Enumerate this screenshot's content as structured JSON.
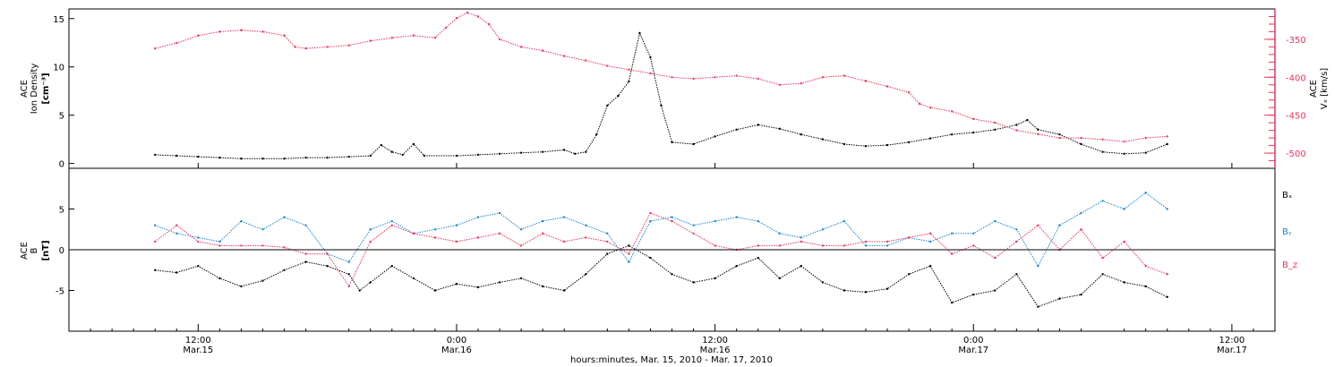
{
  "chart_data": [
    {
      "type": "scatter",
      "panel": "top",
      "left_axis": {
        "label_lines": [
          "ACE",
          "Ion Density",
          "[cm⁻³]"
        ],
        "range": [
          -0.5,
          16
        ],
        "ticks": [
          0,
          5,
          10,
          15
        ],
        "color": "#000000"
      },
      "right_axis": {
        "label_lines": [
          "ACE",
          "Vₓ [km/s]"
        ],
        "range": [
          -520,
          -310
        ],
        "ticks": [
          -350,
          -400,
          -450,
          -500
        ],
        "color": "#e8365d"
      },
      "series": [
        {
          "axis": "left",
          "color": "#000000",
          "points": [
            [
              0,
              0.9
            ],
            [
              2,
              0.8
            ],
            [
              4,
              0.7
            ],
            [
              6,
              0.6
            ],
            [
              8,
              0.5
            ],
            [
              10,
              0.5
            ],
            [
              12,
              0.5
            ],
            [
              14,
              0.6
            ],
            [
              16,
              0.6
            ],
            [
              18,
              0.7
            ],
            [
              20,
              0.8
            ],
            [
              21,
              1.9
            ],
            [
              22,
              1.2
            ],
            [
              23,
              0.9
            ],
            [
              24,
              2.0
            ],
            [
              25,
              0.8
            ],
            [
              28,
              0.8
            ],
            [
              30,
              0.9
            ],
            [
              32,
              1.0
            ],
            [
              34,
              1.1
            ],
            [
              36,
              1.2
            ],
            [
              38,
              1.4
            ],
            [
              39,
              1.0
            ],
            [
              40,
              1.2
            ],
            [
              41,
              3.0
            ],
            [
              42,
              6.0
            ],
            [
              43,
              7.0
            ],
            [
              44,
              8.5
            ],
            [
              45,
              13.5
            ],
            [
              46,
              11.0
            ],
            [
              47,
              6.0
            ],
            [
              48,
              2.2
            ],
            [
              50,
              2.0
            ],
            [
              52,
              2.8
            ],
            [
              54,
              3.5
            ],
            [
              56,
              4.0
            ],
            [
              58,
              3.6
            ],
            [
              60,
              3.0
            ],
            [
              62,
              2.5
            ],
            [
              64,
              2.0
            ],
            [
              66,
              1.8
            ],
            [
              68,
              1.9
            ],
            [
              70,
              2.2
            ],
            [
              72,
              2.6
            ],
            [
              74,
              3.0
            ],
            [
              76,
              3.2
            ],
            [
              78,
              3.5
            ],
            [
              80,
              4.0
            ],
            [
              81,
              4.5
            ],
            [
              82,
              3.5
            ],
            [
              84,
              3.0
            ],
            [
              86,
              2.0
            ],
            [
              88,
              1.2
            ],
            [
              90,
              1.0
            ],
            [
              92,
              1.1
            ],
            [
              94,
              2.0
            ]
          ]
        },
        {
          "axis": "right",
          "color": "#e8365d",
          "points": [
            [
              0,
              -362
            ],
            [
              2,
              -355
            ],
            [
              4,
              -345
            ],
            [
              6,
              -340
            ],
            [
              8,
              -338
            ],
            [
              10,
              -340
            ],
            [
              12,
              -345
            ],
            [
              13,
              -360
            ],
            [
              14,
              -362
            ],
            [
              16,
              -360
            ],
            [
              18,
              -358
            ],
            [
              20,
              -352
            ],
            [
              22,
              -348
            ],
            [
              24,
              -345
            ],
            [
              26,
              -348
            ],
            [
              27,
              -335
            ],
            [
              28,
              -322
            ],
            [
              29,
              -315
            ],
            [
              30,
              -320
            ],
            [
              31,
              -330
            ],
            [
              32,
              -350
            ],
            [
              34,
              -360
            ],
            [
              36,
              -365
            ],
            [
              38,
              -372
            ],
            [
              40,
              -378
            ],
            [
              42,
              -385
            ],
            [
              44,
              -390
            ],
            [
              46,
              -395
            ],
            [
              48,
              -400
            ],
            [
              50,
              -402
            ],
            [
              52,
              -400
            ],
            [
              54,
              -398
            ],
            [
              56,
              -402
            ],
            [
              58,
              -410
            ],
            [
              60,
              -408
            ],
            [
              62,
              -400
            ],
            [
              64,
              -398
            ],
            [
              66,
              -405
            ],
            [
              68,
              -412
            ],
            [
              70,
              -420
            ],
            [
              71,
              -435
            ],
            [
              72,
              -440
            ],
            [
              74,
              -445
            ],
            [
              76,
              -455
            ],
            [
              78,
              -460
            ],
            [
              80,
              -470
            ],
            [
              82,
              -475
            ],
            [
              84,
              -480
            ],
            [
              86,
              -480
            ],
            [
              88,
              -482
            ],
            [
              90,
              -485
            ],
            [
              92,
              -480
            ],
            [
              94,
              -478
            ]
          ]
        }
      ]
    },
    {
      "type": "scatter",
      "panel": "bottom",
      "left_axis": {
        "label_lines": [
          "ACE",
          "B",
          "[nT]"
        ],
        "range": [
          -10,
          10
        ],
        "ticks": [
          5,
          0,
          -5
        ],
        "zero_line": true
      },
      "legend": [
        {
          "text": "Bₓ",
          "color": "#000000"
        },
        {
          "text": "Bᵧ",
          "color": "#1a87d8"
        },
        {
          "text": "B_z",
          "color": "#e8365d"
        }
      ],
      "series": [
        {
          "name": "Bₓ",
          "color": "#000000",
          "points": [
            [
              0,
              -2.5
            ],
            [
              2,
              -2.8
            ],
            [
              4,
              -2.0
            ],
            [
              6,
              -3.5
            ],
            [
              8,
              -4.5
            ],
            [
              10,
              -3.8
            ],
            [
              12,
              -2.5
            ],
            [
              14,
              -1.5
            ],
            [
              16,
              -2.0
            ],
            [
              18,
              -3.0
            ],
            [
              19,
              -5.0
            ],
            [
              20,
              -4.0
            ],
            [
              22,
              -2.0
            ],
            [
              24,
              -3.5
            ],
            [
              26,
              -5.0
            ],
            [
              28,
              -4.2
            ],
            [
              30,
              -4.6
            ],
            [
              32,
              -4.0
            ],
            [
              34,
              -3.5
            ],
            [
              36,
              -4.5
            ],
            [
              38,
              -5.0
            ],
            [
              40,
              -3.0
            ],
            [
              42,
              -0.5
            ],
            [
              44,
              0.5
            ],
            [
              46,
              -1.0
            ],
            [
              48,
              -3.0
            ],
            [
              50,
              -4.0
            ],
            [
              52,
              -3.5
            ],
            [
              54,
              -2.0
            ],
            [
              56,
              -1.0
            ],
            [
              58,
              -3.5
            ],
            [
              60,
              -2.0
            ],
            [
              62,
              -4.0
            ],
            [
              64,
              -5.0
            ],
            [
              66,
              -5.2
            ],
            [
              68,
              -4.8
            ],
            [
              70,
              -3.0
            ],
            [
              72,
              -2.0
            ],
            [
              74,
              -6.5
            ],
            [
              76,
              -5.5
            ],
            [
              78,
              -5.0
            ],
            [
              80,
              -3.0
            ],
            [
              82,
              -7.0
            ],
            [
              84,
              -6.0
            ],
            [
              86,
              -5.5
            ],
            [
              88,
              -3.0
            ],
            [
              90,
              -4.0
            ],
            [
              92,
              -4.5
            ],
            [
              94,
              -5.8
            ]
          ]
        },
        {
          "name": "Bᵧ",
          "color": "#1a87d8",
          "points": [
            [
              0,
              3.0
            ],
            [
              2,
              2.0
            ],
            [
              4,
              1.5
            ],
            [
              6,
              1.0
            ],
            [
              8,
              3.5
            ],
            [
              10,
              2.5
            ],
            [
              12,
              4.0
            ],
            [
              14,
              3.0
            ],
            [
              16,
              -0.5
            ],
            [
              18,
              -1.5
            ],
            [
              20,
              2.5
            ],
            [
              22,
              3.5
            ],
            [
              24,
              2.0
            ],
            [
              26,
              2.5
            ],
            [
              28,
              3.0
            ],
            [
              30,
              4.0
            ],
            [
              32,
              4.5
            ],
            [
              34,
              2.5
            ],
            [
              36,
              3.5
            ],
            [
              38,
              4.0
            ],
            [
              40,
              3.0
            ],
            [
              42,
              2.0
            ],
            [
              44,
              -1.5
            ],
            [
              46,
              3.5
            ],
            [
              48,
              4.0
            ],
            [
              50,
              3.0
            ],
            [
              52,
              3.5
            ],
            [
              54,
              4.0
            ],
            [
              56,
              3.5
            ],
            [
              58,
              2.0
            ],
            [
              60,
              1.5
            ],
            [
              62,
              2.5
            ],
            [
              64,
              3.5
            ],
            [
              66,
              0.5
            ],
            [
              68,
              0.5
            ],
            [
              70,
              1.5
            ],
            [
              72,
              1.0
            ],
            [
              74,
              2.0
            ],
            [
              76,
              2.0
            ],
            [
              78,
              3.5
            ],
            [
              80,
              2.5
            ],
            [
              82,
              -2.0
            ],
            [
              84,
              3.0
            ],
            [
              86,
              4.5
            ],
            [
              88,
              6.0
            ],
            [
              90,
              5.0
            ],
            [
              92,
              7.0
            ],
            [
              94,
              5.0
            ]
          ]
        },
        {
          "name": "B_z",
          "color": "#e8365d",
          "points": [
            [
              0,
              1.0
            ],
            [
              2,
              3.0
            ],
            [
              4,
              1.0
            ],
            [
              6,
              0.5
            ],
            [
              8,
              0.5
            ],
            [
              10,
              0.5
            ],
            [
              12,
              0.3
            ],
            [
              14,
              -0.5
            ],
            [
              16,
              -0.5
            ],
            [
              18,
              -4.5
            ],
            [
              20,
              1.0
            ],
            [
              22,
              3.0
            ],
            [
              24,
              2.0
            ],
            [
              26,
              1.5
            ],
            [
              28,
              1.0
            ],
            [
              30,
              1.5
            ],
            [
              32,
              2.0
            ],
            [
              34,
              0.5
            ],
            [
              36,
              2.0
            ],
            [
              38,
              1.0
            ],
            [
              40,
              1.5
            ],
            [
              42,
              1.0
            ],
            [
              44,
              -0.5
            ],
            [
              46,
              4.5
            ],
            [
              48,
              3.5
            ],
            [
              50,
              2.0
            ],
            [
              52,
              0.5
            ],
            [
              54,
              0.0
            ],
            [
              56,
              0.5
            ],
            [
              58,
              0.5
            ],
            [
              60,
              1.0
            ],
            [
              62,
              0.5
            ],
            [
              64,
              0.5
            ],
            [
              66,
              1.0
            ],
            [
              68,
              1.0
            ],
            [
              70,
              1.5
            ],
            [
              72,
              2.0
            ],
            [
              74,
              -0.5
            ],
            [
              76,
              0.5
            ],
            [
              78,
              -1.0
            ],
            [
              80,
              1.0
            ],
            [
              82,
              3.0
            ],
            [
              84,
              0.0
            ],
            [
              86,
              2.5
            ],
            [
              88,
              -1.0
            ],
            [
              90,
              1.0
            ],
            [
              92,
              -2.0
            ],
            [
              94,
              -3.0
            ]
          ]
        }
      ]
    }
  ],
  "x_axis": {
    "range": [
      -8,
      104
    ],
    "ticks": [
      {
        "value": 4,
        "time": "12:00",
        "date": "Mar.15"
      },
      {
        "value": 28,
        "time": "0:00",
        "date": "Mar.16"
      },
      {
        "value": 52,
        "time": "12:00",
        "date": "Mar.16"
      },
      {
        "value": 76,
        "time": "0:00",
        "date": "Mar.17"
      },
      {
        "value": 100,
        "time": "12:00",
        "date": "Mar.17"
      }
    ],
    "label": "hours:minutes, Mar. 15, 2010 - Mar. 17, 2010"
  }
}
